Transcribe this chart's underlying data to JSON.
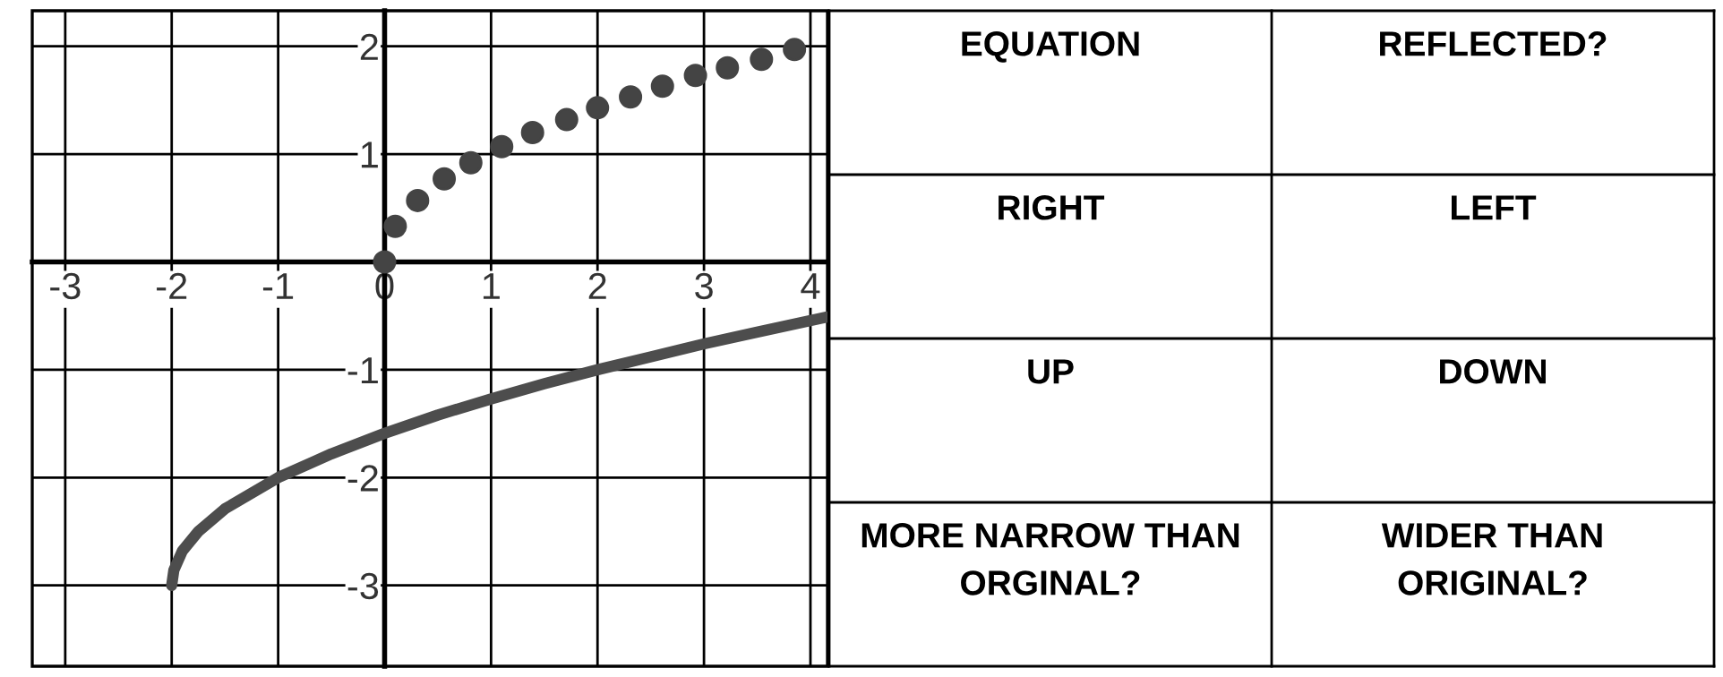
{
  "chart_data": [
    {
      "type": "line",
      "xlim": [
        -3.31,
        4.16
      ],
      "ylim": [
        -3.75,
        2.33
      ],
      "xticks": [
        -3,
        -2,
        -1,
        0,
        1,
        2,
        3,
        4
      ],
      "yticks": [
        -3,
        -2,
        -1,
        1,
        2
      ],
      "grid": true,
      "series": [
        {
          "type": "scatter",
          "color": "#444444",
          "marker": "circle",
          "x": [
            0,
            0.1,
            0.31,
            0.56,
            0.81,
            1.1,
            1.39,
            1.71,
            2.0,
            2.31,
            2.61,
            2.92,
            3.22,
            3.54,
            3.85
          ],
          "values": [
            0,
            0.33,
            0.57,
            0.77,
            0.92,
            1.07,
            1.2,
            1.32,
            1.43,
            1.53,
            1.63,
            1.73,
            1.8,
            1.88,
            1.97
          ]
        },
        {
          "type": "line",
          "color": "#4d4d4d",
          "x": [
            -2,
            -1.98,
            -1.9,
            -1.75,
            -1.5,
            -1,
            -0.5,
            0,
            0.5,
            1,
            1.5,
            2,
            2.5,
            3,
            3.5,
            4.16
          ],
          "values": [
            -3,
            -2.86,
            -2.68,
            -2.5,
            -2.29,
            -2,
            -1.78,
            -1.59,
            -1.42,
            -1.27,
            -1.13,
            -1,
            -0.88,
            -0.76,
            -0.65,
            -0.51
          ]
        }
      ]
    },
    {
      "type": "other",
      "annotations": [
        "EQUATION",
        "REFLECTED?",
        "RIGHT",
        "LEFT",
        "UP",
        "DOWN",
        "MORE NARROW THAN\nORGINAL?",
        "WIDER THAN\nORIGINAL?"
      ]
    }
  ]
}
